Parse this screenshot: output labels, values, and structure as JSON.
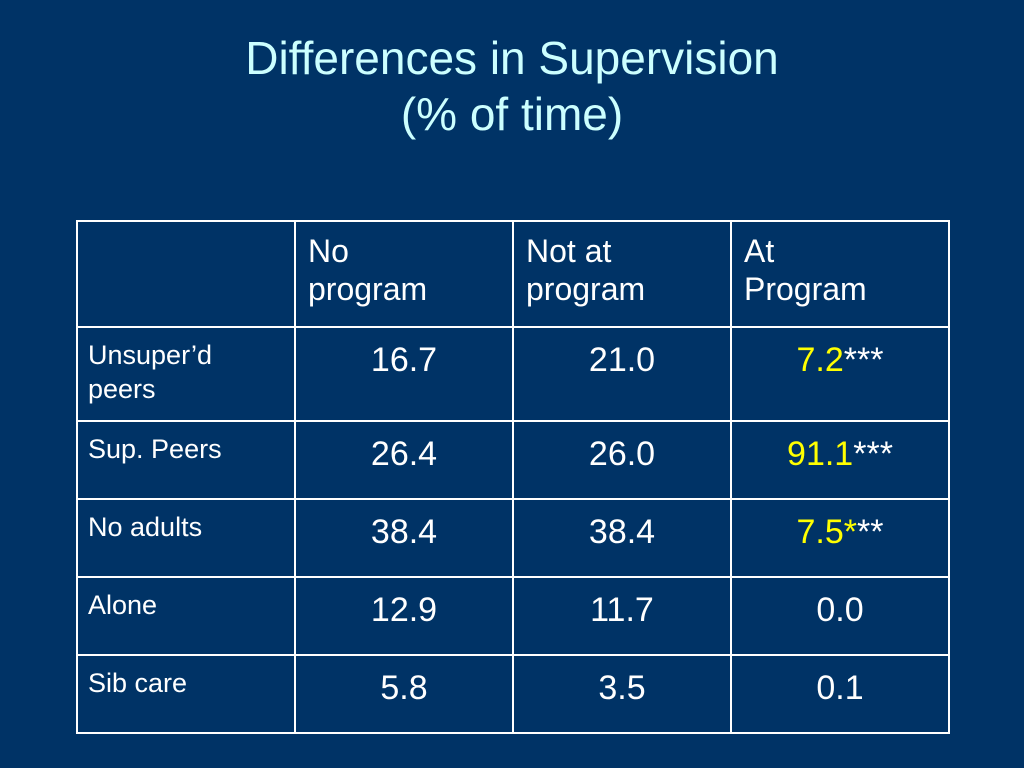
{
  "slide": {
    "title_line1": "Differences in Supervision",
    "title_line2": "(% of time)"
  },
  "colors": {
    "background": "#003366",
    "title": "#ccffff",
    "text": "#ffffff",
    "highlight": "#ffff00"
  },
  "table": {
    "headers": [
      {
        "line1": "No",
        "line2": "program"
      },
      {
        "line1": "Not at",
        "line2": "program"
      },
      {
        "line1": "At",
        "line2": "Program"
      }
    ],
    "rows": [
      {
        "label_line1": "Unsuper’d",
        "label_line2": "peers",
        "no_program": "16.7",
        "not_at_program": "21.0",
        "at_program": "7.2",
        "at_program_mark": "***"
      },
      {
        "label_line1": "Sup. Peers",
        "label_line2": "",
        "no_program": "26.4",
        "not_at_program": "26.0",
        "at_program": "91.1",
        "at_program_mark": "***"
      },
      {
        "label_line1": "No adults",
        "label_line2": "",
        "no_program": "38.4",
        "not_at_program": "38.4",
        "at_program": "7.5*",
        "at_program_mark": "**"
      },
      {
        "label_line1": "Alone",
        "label_line2": "",
        "no_program": "12.9",
        "not_at_program": "11.7",
        "at_program": "0.0",
        "at_program_mark": ""
      },
      {
        "label_line1": "Sib care",
        "label_line2": "",
        "no_program": "5.8",
        "not_at_program": "3.5",
        "at_program": "0.1",
        "at_program_mark": ""
      }
    ]
  }
}
